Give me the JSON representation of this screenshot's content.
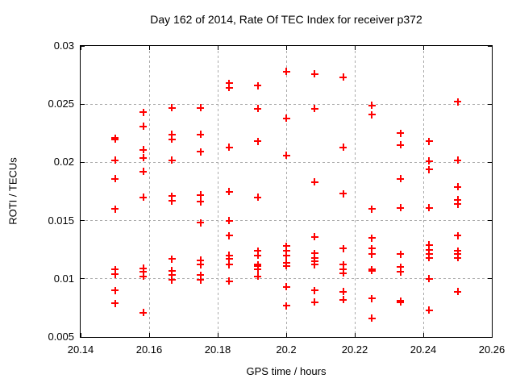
{
  "chart_data": {
    "type": "scatter",
    "title": "Day 162 of 2014, Rate Of TEC Index for receiver p372",
    "xlabel": "GPS time / hours",
    "ylabel": "ROTI / TECUs",
    "xlim": [
      20.14,
      20.26
    ],
    "ylim": [
      0.005,
      0.03
    ],
    "xticks": [
      20.14,
      20.16,
      20.18,
      20.2,
      20.22,
      20.24,
      20.26
    ],
    "xtick_labels": [
      "20.14",
      "20.16",
      "20.18",
      "20.2",
      "20.22",
      "20.24",
      "20.26"
    ],
    "yticks": [
      0.005,
      0.01,
      0.015,
      0.02,
      0.025,
      0.03
    ],
    "ytick_labels": [
      "0.005",
      "0.01",
      "0.015",
      "0.02",
      "0.025",
      "0.03"
    ],
    "grid": true,
    "legend": "none",
    "marker": "plus",
    "marker_color": "#ff0000",
    "grid_color": "#ababab",
    "series": [
      {
        "name": "ROTI",
        "points": [
          [
            20.15,
            0.0221,
            2
          ],
          [
            20.15,
            0.0202
          ],
          [
            20.15,
            0.0186
          ],
          [
            20.15,
            0.016
          ],
          [
            20.15,
            0.0108
          ],
          [
            20.15,
            0.0104
          ],
          [
            20.15,
            0.009
          ],
          [
            20.15,
            0.0079
          ],
          [
            20.1583,
            0.0243
          ],
          [
            20.1583,
            0.0231
          ],
          [
            20.1583,
            0.0211
          ],
          [
            20.1583,
            0.0204
          ],
          [
            20.1583,
            0.0192
          ],
          [
            20.1583,
            0.017
          ],
          [
            20.1583,
            0.0109
          ],
          [
            20.1583,
            0.0106
          ],
          [
            20.1583,
            0.0102
          ],
          [
            20.1583,
            0.0071
          ],
          [
            20.1667,
            0.0247
          ],
          [
            20.1667,
            0.0224
          ],
          [
            20.1667,
            0.022
          ],
          [
            20.1667,
            0.0202
          ],
          [
            20.1667,
            0.0171
          ],
          [
            20.1667,
            0.0167
          ],
          [
            20.1667,
            0.0117
          ],
          [
            20.1667,
            0.0107
          ],
          [
            20.1667,
            0.0103
          ],
          [
            20.1667,
            0.0099
          ],
          [
            20.175,
            0.0247
          ],
          [
            20.175,
            0.0224
          ],
          [
            20.175,
            0.0209
          ],
          [
            20.175,
            0.0172
          ],
          [
            20.175,
            0.0166
          ],
          [
            20.175,
            0.0148
          ],
          [
            20.175,
            0.0116
          ],
          [
            20.175,
            0.0112
          ],
          [
            20.175,
            0.0103
          ],
          [
            20.175,
            0.0099
          ],
          [
            20.1833,
            0.0268
          ],
          [
            20.1833,
            0.0264
          ],
          [
            20.1833,
            0.0213
          ],
          [
            20.1833,
            0.0175
          ],
          [
            20.1833,
            0.015
          ],
          [
            20.1833,
            0.0137
          ],
          [
            20.1833,
            0.012
          ],
          [
            20.1833,
            0.0117
          ],
          [
            20.1833,
            0.0112
          ],
          [
            20.1833,
            0.0098
          ],
          [
            20.1917,
            0.0266
          ],
          [
            20.1917,
            0.0246
          ],
          [
            20.1917,
            0.0218
          ],
          [
            20.1917,
            0.017
          ],
          [
            20.1917,
            0.0124
          ],
          [
            20.1917,
            0.012
          ],
          [
            20.1917,
            0.0112,
            2
          ],
          [
            20.1917,
            0.0108
          ],
          [
            20.1917,
            0.0102
          ],
          [
            20.2,
            0.0278
          ],
          [
            20.2,
            0.0238
          ],
          [
            20.2,
            0.0206
          ],
          [
            20.2,
            0.0128
          ],
          [
            20.2,
            0.0124
          ],
          [
            20.2,
            0.012
          ],
          [
            20.2,
            0.0114
          ],
          [
            20.2,
            0.0111
          ],
          [
            20.2,
            0.0093
          ],
          [
            20.2,
            0.0077
          ],
          [
            20.2083,
            0.0276
          ],
          [
            20.2083,
            0.0246
          ],
          [
            20.2083,
            0.0183
          ],
          [
            20.2083,
            0.0136
          ],
          [
            20.2083,
            0.0122
          ],
          [
            20.2083,
            0.0118
          ],
          [
            20.2083,
            0.0115
          ],
          [
            20.2083,
            0.0112
          ],
          [
            20.2083,
            0.009
          ],
          [
            20.2083,
            0.008
          ],
          [
            20.2167,
            0.0273
          ],
          [
            20.2167,
            0.0213
          ],
          [
            20.2167,
            0.0173
          ],
          [
            20.2167,
            0.0126
          ],
          [
            20.2167,
            0.0112
          ],
          [
            20.2167,
            0.0108
          ],
          [
            20.2167,
            0.0105
          ],
          [
            20.2167,
            0.0089
          ],
          [
            20.2167,
            0.0082
          ],
          [
            20.225,
            0.0249
          ],
          [
            20.225,
            0.0241
          ],
          [
            20.225,
            0.016
          ],
          [
            20.225,
            0.0135
          ],
          [
            20.225,
            0.0126
          ],
          [
            20.225,
            0.0121
          ],
          [
            20.225,
            0.0108,
            2
          ],
          [
            20.225,
            0.0083
          ],
          [
            20.225,
            0.0066
          ],
          [
            20.2333,
            0.0225
          ],
          [
            20.2333,
            0.0215
          ],
          [
            20.2333,
            0.0186
          ],
          [
            20.2333,
            0.0161
          ],
          [
            20.2333,
            0.0121
          ],
          [
            20.2333,
            0.011
          ],
          [
            20.2333,
            0.0106
          ],
          [
            20.2333,
            0.0081,
            2
          ],
          [
            20.2417,
            0.0218
          ],
          [
            20.2417,
            0.0201
          ],
          [
            20.2417,
            0.0194
          ],
          [
            20.2417,
            0.0161
          ],
          [
            20.2417,
            0.0129
          ],
          [
            20.2417,
            0.0125
          ],
          [
            20.2417,
            0.0121
          ],
          [
            20.2417,
            0.0118
          ],
          [
            20.2417,
            0.01
          ],
          [
            20.2417,
            0.0073
          ],
          [
            20.25,
            0.0252
          ],
          [
            20.25,
            0.0202
          ],
          [
            20.25,
            0.0179
          ],
          [
            20.25,
            0.0168
          ],
          [
            20.25,
            0.0164
          ],
          [
            20.25,
            0.0137
          ],
          [
            20.25,
            0.0124
          ],
          [
            20.25,
            0.0121
          ],
          [
            20.25,
            0.0118
          ],
          [
            20.25,
            0.0089
          ]
        ]
      }
    ]
  }
}
